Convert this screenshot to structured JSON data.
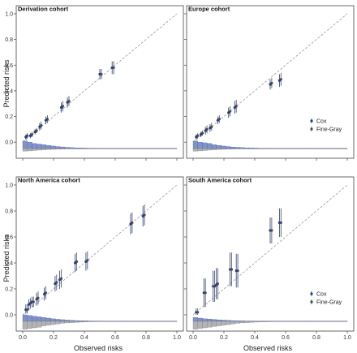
{
  "labels": {
    "ylabel": "Predicted risks",
    "xlabel": "Observed risks"
  },
  "legend": {
    "cox": "Cox",
    "fine_gray": "Fine-Gray"
  },
  "colors": {
    "cox": "#1f3a93",
    "fine_gray": "#4a4a4a",
    "hist_cox": "#7f93c9",
    "hist_fg": "#b3b3b3",
    "diagonal": "#999999"
  },
  "chart_data": [
    {
      "type": "scatter",
      "title": "Derivation cohort",
      "xlim": [
        0,
        1
      ],
      "ylim": [
        -0.1,
        1
      ],
      "xticks": [
        "0.0",
        "0.2",
        "0.4",
        "0.6",
        "0.8",
        "1.0"
      ],
      "yticks": [
        "0.0",
        "0.2",
        "0.4",
        "0.6",
        "0.8",
        "1.0"
      ],
      "show_legend": false,
      "series": [
        {
          "name": "Cox",
          "points": [
            {
              "x": 0.02,
              "y": 0.04,
              "lo": 0.02,
              "hi": 0.06
            },
            {
              "x": 0.05,
              "y": 0.05,
              "lo": 0.03,
              "hi": 0.07
            },
            {
              "x": 0.08,
              "y": 0.08,
              "lo": 0.06,
              "hi": 0.1
            },
            {
              "x": 0.11,
              "y": 0.12,
              "lo": 0.09,
              "hi": 0.15
            },
            {
              "x": 0.15,
              "y": 0.17,
              "lo": 0.14,
              "hi": 0.2
            },
            {
              "x": 0.25,
              "y": 0.27,
              "lo": 0.23,
              "hi": 0.31
            },
            {
              "x": 0.29,
              "y": 0.31,
              "lo": 0.27,
              "hi": 0.35
            },
            {
              "x": 0.5,
              "y": 0.53,
              "lo": 0.49,
              "hi": 0.57
            },
            {
              "x": 0.58,
              "y": 0.58,
              "lo": 0.53,
              "hi": 0.63
            }
          ]
        },
        {
          "name": "Fine-Gray",
          "points": [
            {
              "x": 0.03,
              "y": 0.05,
              "lo": 0.03,
              "hi": 0.07
            },
            {
              "x": 0.06,
              "y": 0.06,
              "lo": 0.04,
              "hi": 0.08
            },
            {
              "x": 0.09,
              "y": 0.09,
              "lo": 0.07,
              "hi": 0.11
            },
            {
              "x": 0.12,
              "y": 0.13,
              "lo": 0.1,
              "hi": 0.16
            },
            {
              "x": 0.16,
              "y": 0.18,
              "lo": 0.15,
              "hi": 0.21
            },
            {
              "x": 0.26,
              "y": 0.28,
              "lo": 0.24,
              "hi": 0.32
            },
            {
              "x": 0.3,
              "y": 0.32,
              "lo": 0.28,
              "hi": 0.36
            },
            {
              "x": 0.51,
              "y": 0.53,
              "lo": 0.49,
              "hi": 0.57
            },
            {
              "x": 0.59,
              "y": 0.58,
              "lo": 0.53,
              "hi": 0.63
            }
          ]
        }
      ],
      "histogram": {
        "cox": [
          0.06,
          0.05,
          0.04,
          0.035,
          0.03,
          0.025,
          0.02,
          0.016,
          0.013,
          0.01,
          0.008,
          0.006,
          0.005,
          0.004,
          0.003,
          0.003,
          0.002,
          0.002,
          0.0015,
          0.0015,
          0.001,
          0.001,
          0.001,
          0.001,
          0.001,
          0.001,
          0.001,
          0.001,
          0.001,
          0.001,
          0.001,
          0.001,
          0.001
        ],
        "fine_gray": [
          0.02,
          0.018,
          0.015,
          0.012,
          0.01,
          0.008,
          0.006,
          0.005,
          0.004,
          0.003,
          0.002,
          0.0015,
          0.001,
          0.001,
          0.001,
          0.001,
          0.001,
          0.001,
          0.001,
          0.001,
          0.001,
          0.001,
          0.001,
          0.001,
          0.001,
          0.001,
          0.001,
          0.001,
          0.001,
          0.001,
          0.001,
          0.001,
          0.001
        ]
      }
    },
    {
      "type": "scatter",
      "title": "Europe cohort",
      "xlim": [
        0,
        1
      ],
      "ylim": [
        -0.1,
        1
      ],
      "xticks": [
        "0.0",
        "0.2",
        "0.4",
        "0.6",
        "0.8",
        "1.0"
      ],
      "yticks": [
        "0.0",
        "0.2",
        "0.4",
        "0.6",
        "0.8",
        "1.0"
      ],
      "show_legend": true,
      "series": [
        {
          "name": "Cox",
          "points": [
            {
              "x": 0.02,
              "y": 0.04,
              "lo": 0.02,
              "hi": 0.06
            },
            {
              "x": 0.05,
              "y": 0.06,
              "lo": 0.04,
              "hi": 0.08
            },
            {
              "x": 0.08,
              "y": 0.09,
              "lo": 0.06,
              "hi": 0.12
            },
            {
              "x": 0.11,
              "y": 0.11,
              "lo": 0.08,
              "hi": 0.14
            },
            {
              "x": 0.16,
              "y": 0.17,
              "lo": 0.14,
              "hi": 0.2
            },
            {
              "x": 0.23,
              "y": 0.23,
              "lo": 0.19,
              "hi": 0.27
            },
            {
              "x": 0.27,
              "y": 0.27,
              "lo": 0.22,
              "hi": 0.32
            },
            {
              "x": 0.5,
              "y": 0.45,
              "lo": 0.41,
              "hi": 0.49
            },
            {
              "x": 0.56,
              "y": 0.48,
              "lo": 0.43,
              "hi": 0.53
            }
          ]
        },
        {
          "name": "Fine-Gray",
          "points": [
            {
              "x": 0.03,
              "y": 0.05,
              "lo": 0.03,
              "hi": 0.07
            },
            {
              "x": 0.06,
              "y": 0.07,
              "lo": 0.05,
              "hi": 0.09
            },
            {
              "x": 0.09,
              "y": 0.1,
              "lo": 0.07,
              "hi": 0.13
            },
            {
              "x": 0.12,
              "y": 0.12,
              "lo": 0.09,
              "hi": 0.15
            },
            {
              "x": 0.17,
              "y": 0.18,
              "lo": 0.15,
              "hi": 0.21
            },
            {
              "x": 0.24,
              "y": 0.24,
              "lo": 0.2,
              "hi": 0.28
            },
            {
              "x": 0.28,
              "y": 0.28,
              "lo": 0.23,
              "hi": 0.33
            },
            {
              "x": 0.51,
              "y": 0.46,
              "lo": 0.42,
              "hi": 0.5
            },
            {
              "x": 0.57,
              "y": 0.49,
              "lo": 0.44,
              "hi": 0.54
            }
          ]
        }
      ],
      "histogram": {
        "cox": [
          0.06,
          0.05,
          0.045,
          0.04,
          0.03,
          0.025,
          0.02,
          0.016,
          0.012,
          0.01,
          0.008,
          0.006,
          0.005,
          0.004,
          0.003,
          0.003,
          0.002,
          0.002,
          0.0015,
          0.0015,
          0.001,
          0.001,
          0.001,
          0.001,
          0.001,
          0.001,
          0.001,
          0.001,
          0.001,
          0.001,
          0.001,
          0.001,
          0.001
        ],
        "fine_gray": [
          0.02,
          0.018,
          0.015,
          0.012,
          0.01,
          0.008,
          0.006,
          0.005,
          0.004,
          0.003,
          0.002,
          0.0015,
          0.001,
          0.001,
          0.001,
          0.001,
          0.001,
          0.001,
          0.001,
          0.001,
          0.001,
          0.001,
          0.001,
          0.001,
          0.001,
          0.001,
          0.001,
          0.001,
          0.001,
          0.001,
          0.001,
          0.001,
          0.001
        ]
      }
    },
    {
      "type": "scatter",
      "title": "North America cohort",
      "xlim": [
        0,
        1
      ],
      "ylim": [
        -0.1,
        1
      ],
      "xticks": [
        "0.0",
        "0.2",
        "0.4",
        "0.6",
        "0.8",
        "1.0"
      ],
      "yticks": [
        "0.0",
        "0.2",
        "0.4",
        "0.6",
        "0.8",
        "1.0"
      ],
      "show_legend": false,
      "series": [
        {
          "name": "Cox",
          "points": [
            {
              "x": 0.02,
              "y": 0.04,
              "lo": 0.01,
              "hi": 0.08
            },
            {
              "x": 0.04,
              "y": 0.08,
              "lo": 0.04,
              "hi": 0.12
            },
            {
              "x": 0.06,
              "y": 0.1,
              "lo": 0.06,
              "hi": 0.14
            },
            {
              "x": 0.09,
              "y": 0.12,
              "lo": 0.07,
              "hi": 0.17
            },
            {
              "x": 0.14,
              "y": 0.16,
              "lo": 0.11,
              "hi": 0.21
            },
            {
              "x": 0.21,
              "y": 0.24,
              "lo": 0.18,
              "hi": 0.3
            },
            {
              "x": 0.24,
              "y": 0.27,
              "lo": 0.2,
              "hi": 0.34
            },
            {
              "x": 0.34,
              "y": 0.4,
              "lo": 0.33,
              "hi": 0.47
            },
            {
              "x": 0.41,
              "y": 0.41,
              "lo": 0.34,
              "hi": 0.48
            },
            {
              "x": 0.7,
              "y": 0.7,
              "lo": 0.62,
              "hi": 0.78
            },
            {
              "x": 0.78,
              "y": 0.76,
              "lo": 0.68,
              "hi": 0.84
            }
          ]
        },
        {
          "name": "Fine-Gray",
          "points": [
            {
              "x": 0.03,
              "y": 0.04,
              "lo": 0.01,
              "hi": 0.08
            },
            {
              "x": 0.05,
              "y": 0.09,
              "lo": 0.05,
              "hi": 0.13
            },
            {
              "x": 0.07,
              "y": 0.1,
              "lo": 0.06,
              "hi": 0.14
            },
            {
              "x": 0.1,
              "y": 0.13,
              "lo": 0.08,
              "hi": 0.18
            },
            {
              "x": 0.15,
              "y": 0.17,
              "lo": 0.12,
              "hi": 0.22
            },
            {
              "x": 0.22,
              "y": 0.25,
              "lo": 0.19,
              "hi": 0.31
            },
            {
              "x": 0.25,
              "y": 0.28,
              "lo": 0.21,
              "hi": 0.35
            },
            {
              "x": 0.35,
              "y": 0.41,
              "lo": 0.34,
              "hi": 0.48
            },
            {
              "x": 0.42,
              "y": 0.42,
              "lo": 0.35,
              "hi": 0.49
            },
            {
              "x": 0.71,
              "y": 0.71,
              "lo": 0.63,
              "hi": 0.79
            },
            {
              "x": 0.79,
              "y": 0.77,
              "lo": 0.69,
              "hi": 0.85
            }
          ]
        }
      ],
      "histogram": {
        "cox": [
          0.05,
          0.045,
          0.04,
          0.035,
          0.03,
          0.025,
          0.02,
          0.016,
          0.013,
          0.01,
          0.008,
          0.006,
          0.005,
          0.004,
          0.003,
          0.003,
          0.002,
          0.002,
          0.0015,
          0.0015,
          0.001,
          0.001,
          0.001,
          0.001,
          0.001,
          0.001,
          0.001,
          0.001,
          0.001,
          0.001,
          0.001,
          0.001,
          0.001
        ],
        "fine_gray": [
          0.06,
          0.055,
          0.05,
          0.045,
          0.035,
          0.03,
          0.025,
          0.02,
          0.015,
          0.012,
          0.01,
          0.008,
          0.006,
          0.004,
          0.003,
          0.002,
          0.002,
          0.001,
          0.001,
          0.001,
          0.001,
          0.001,
          0.001,
          0.001,
          0.001,
          0.001,
          0.001,
          0.001,
          0.001,
          0.001,
          0.001,
          0.001,
          0.001
        ]
      }
    },
    {
      "type": "scatter",
      "title": "South America cohort",
      "xlim": [
        0,
        1
      ],
      "ylim": [
        -0.1,
        1
      ],
      "xticks": [
        "0.0",
        "0.2",
        "0.4",
        "0.6",
        "0.8",
        "1.0"
      ],
      "yticks": [
        "0.0",
        "0.2",
        "0.4",
        "0.6",
        "0.8",
        "1.0"
      ],
      "show_legend": true,
      "series": [
        {
          "name": "Cox",
          "points": [
            {
              "x": 0.02,
              "y": 0.02,
              "lo": 0.0,
              "hi": 0.05
            },
            {
              "x": 0.07,
              "y": 0.17,
              "lo": 0.06,
              "hi": 0.28
            },
            {
              "x": 0.13,
              "y": 0.22,
              "lo": 0.1,
              "hi": 0.34
            },
            {
              "x": 0.15,
              "y": 0.23,
              "lo": 0.12,
              "hi": 0.36
            },
            {
              "x": 0.24,
              "y": 0.35,
              "lo": 0.22,
              "hi": 0.48
            },
            {
              "x": 0.28,
              "y": 0.34,
              "lo": 0.21,
              "hi": 0.47
            },
            {
              "x": 0.5,
              "y": 0.65,
              "lo": 0.55,
              "hi": 0.75
            },
            {
              "x": 0.56,
              "y": 0.71,
              "lo": 0.6,
              "hi": 0.82
            }
          ]
        },
        {
          "name": "Fine-Gray",
          "points": [
            {
              "x": 0.03,
              "y": 0.02,
              "lo": 0.0,
              "hi": 0.05
            },
            {
              "x": 0.08,
              "y": 0.17,
              "lo": 0.06,
              "hi": 0.28
            },
            {
              "x": 0.14,
              "y": 0.22,
              "lo": 0.1,
              "hi": 0.34
            },
            {
              "x": 0.16,
              "y": 0.24,
              "lo": 0.12,
              "hi": 0.36
            },
            {
              "x": 0.25,
              "y": 0.35,
              "lo": 0.22,
              "hi": 0.48
            },
            {
              "x": 0.29,
              "y": 0.34,
              "lo": 0.21,
              "hi": 0.47
            },
            {
              "x": 0.51,
              "y": 0.65,
              "lo": 0.55,
              "hi": 0.75
            },
            {
              "x": 0.57,
              "y": 0.71,
              "lo": 0.6,
              "hi": 0.82
            }
          ]
        }
      ],
      "histogram": {
        "cox": [
          0.03,
          0.025,
          0.02,
          0.018,
          0.015,
          0.012,
          0.01,
          0.008,
          0.006,
          0.005,
          0.004,
          0.003,
          0.003,
          0.002,
          0.002,
          0.0015,
          0.0015,
          0.001,
          0.001,
          0.001,
          0.001,
          0.001,
          0.001,
          0.001,
          0.001,
          0.001,
          0.001,
          0.001,
          0.001,
          0.001,
          0.001,
          0.001,
          0.001
        ],
        "fine_gray": [
          0.06,
          0.055,
          0.05,
          0.045,
          0.04,
          0.035,
          0.03,
          0.025,
          0.02,
          0.015,
          0.012,
          0.01,
          0.008,
          0.006,
          0.005,
          0.004,
          0.003,
          0.002,
          0.002,
          0.001,
          0.001,
          0.001,
          0.001,
          0.001,
          0.001,
          0.001,
          0.001,
          0.001,
          0.001,
          0.001,
          0.001,
          0.001,
          0.001
        ]
      }
    }
  ]
}
